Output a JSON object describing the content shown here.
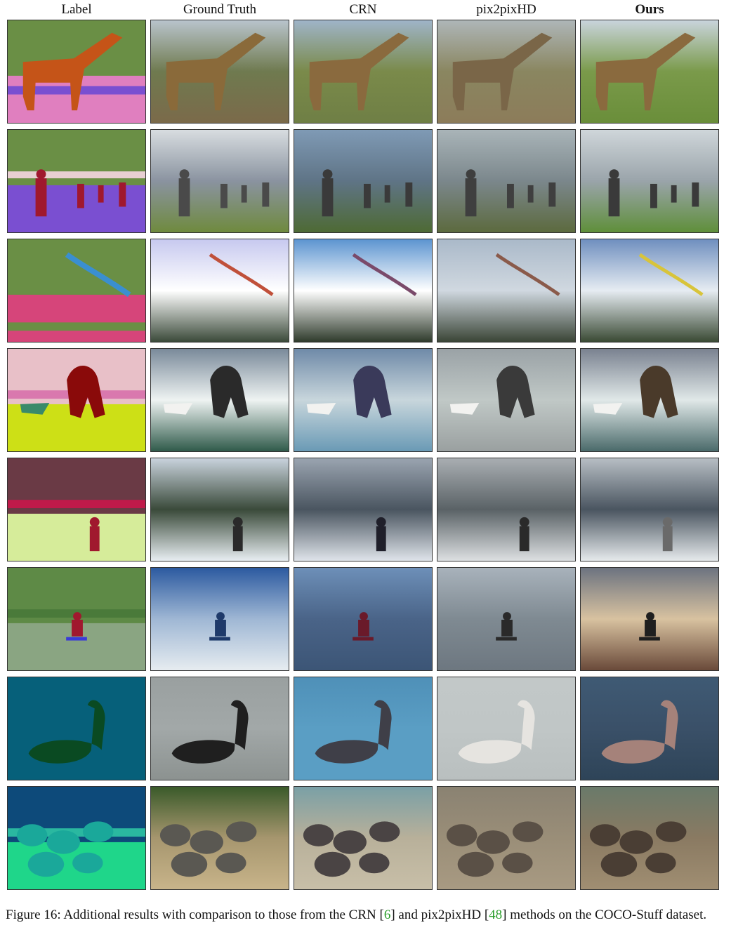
{
  "columns": [
    {
      "label": "Label",
      "bold": false
    },
    {
      "label": "Ground Truth",
      "bold": false
    },
    {
      "label": "CRN",
      "bold": false
    },
    {
      "label": "pix2pixHD",
      "bold": false
    },
    {
      "label": "Ours",
      "bold": true
    }
  ],
  "rows": [
    {
      "subject": "giraffe"
    },
    {
      "subject": "kite-flyers-field"
    },
    {
      "subject": "kite-sky"
    },
    {
      "subject": "surfer"
    },
    {
      "subject": "skier"
    },
    {
      "subject": "snowboarder"
    },
    {
      "subject": "swans"
    },
    {
      "subject": "elephants"
    }
  ],
  "caption": {
    "prefix": "Figure 16: Additional results with comparison to those from the CRN [",
    "ref1": "6",
    "middle": "] and pix2pixHD [",
    "ref2": "48",
    "suffix": "] methods on the COCO-Stuff dataset."
  },
  "colors": {
    "reference_link": "#2a9d2a"
  }
}
